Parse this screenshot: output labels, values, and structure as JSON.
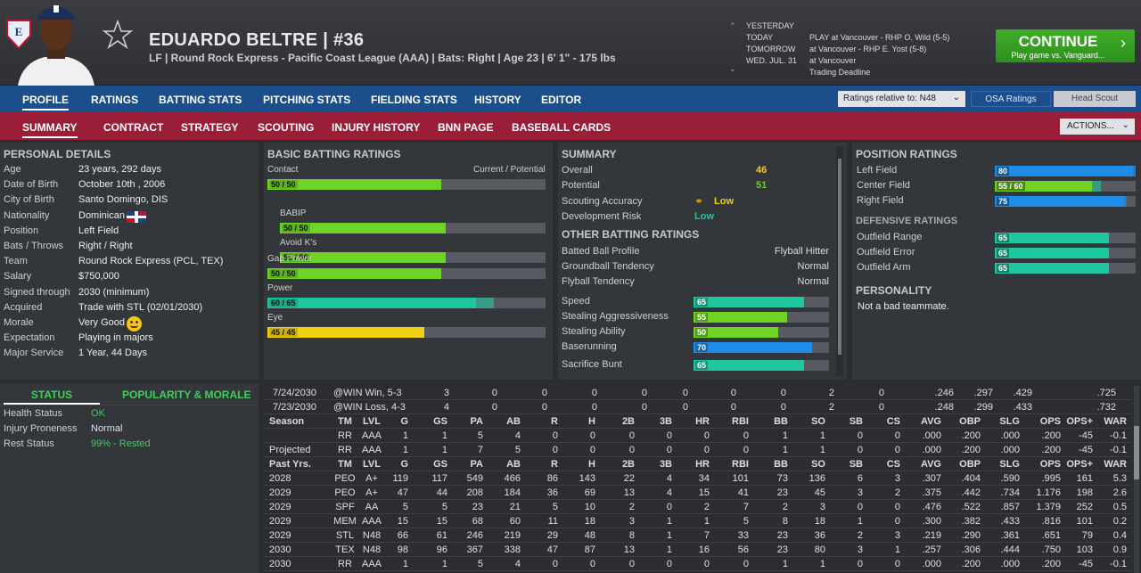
{
  "header": {
    "player_name": "EDUARDO BELTRE  |  #36",
    "player_line": "LF | Round Rock Express - Pacific Coast League (AAA)  |  Bats: Right  |  Age 23  |  6' 1\" - 175 lbs",
    "schedule": [
      {
        "day": "YESTERDAY",
        "event": ""
      },
      {
        "day": "TODAY",
        "event": "PLAY at Vancouver - RHP O. Wild (5-5)"
      },
      {
        "day": "TOMORROW",
        "event": "at Vancouver - RHP E. Yost (5-8)"
      },
      {
        "day": "WED. JUL. 31",
        "event": "at Vancouver"
      },
      {
        "day": "",
        "event": "Trading Deadline"
      }
    ],
    "continue_label": "CONTINUE",
    "continue_sub": "Play game vs. Vanguard..."
  },
  "nav_main": [
    "PROFILE",
    "RATINGS",
    "BATTING STATS",
    "PITCHING STATS",
    "FIELDING STATS",
    "HISTORY",
    "EDITOR"
  ],
  "ratings_relative": "Ratings relative to: N48",
  "osa_ratings": "OSA Ratings",
  "head_scout": "Head Scout",
  "nav_sub": [
    "SUMMARY",
    "CONTRACT",
    "STRATEGY",
    "SCOUTING",
    "INJURY HISTORY",
    "BNN PAGE",
    "BASEBALL CARDS"
  ],
  "actions_label": "ACTIONS...",
  "personal": {
    "title": "PERSONAL DETAILS",
    "rows": [
      {
        "k": "Age",
        "v": "23 years, 292 days"
      },
      {
        "k": "Date of Birth",
        "v": "October 10th , 2006"
      },
      {
        "k": "City of Birth",
        "v": "Santo Domingo, DIS"
      },
      {
        "k": "Nationality",
        "v": "Dominican"
      },
      {
        "k": "Position",
        "v": "Left Field"
      },
      {
        "k": "Bats / Throws",
        "v": "Right / Right"
      },
      {
        "k": "Team",
        "v": "Round Rock Express (PCL, TEX)"
      },
      {
        "k": "Salary",
        "v": "$750,000"
      },
      {
        "k": "Signed through",
        "v": "2030 (minimum)"
      },
      {
        "k": "Acquired",
        "v": "Trade with STL (02/01/2030)"
      },
      {
        "k": "Morale",
        "v": "Very Good"
      },
      {
        "k": "Expectation",
        "v": "Playing in majors"
      },
      {
        "k": "Major Service",
        "v": "1 Year, 44 Days"
      }
    ]
  },
  "batting": {
    "title": "BASIC BATTING RATINGS",
    "current_potential": "Current / Potential",
    "bars": [
      {
        "name": "Contact",
        "label": "50 / 50",
        "cur": 50,
        "pot": 50,
        "color": "green",
        "indent": false
      },
      {
        "name": "BABIP",
        "label": "50 / 50",
        "cur": 50,
        "pot": 50,
        "color": "green",
        "indent": true
      },
      {
        "name": "Avoid K's",
        "label": "50 / 50",
        "cur": 50,
        "pot": 50,
        "color": "green",
        "indent": true
      },
      {
        "name": "Gap Power",
        "label": "50 / 50",
        "cur": 50,
        "pot": 50,
        "color": "green",
        "indent": false
      },
      {
        "name": "Power",
        "label": "60 / 65",
        "cur": 60,
        "pot": 65,
        "color": "teal",
        "indent": false
      },
      {
        "name": "Eye",
        "label": "45 / 45",
        "cur": 45,
        "pot": 45,
        "color": "yellow",
        "indent": false
      }
    ]
  },
  "summary": {
    "title": "SUMMARY",
    "overall_k": "Overall",
    "overall_v": "46",
    "potential_k": "Potential",
    "potential_v": "51",
    "scouting_k": "Scouting Accuracy",
    "scouting_v": "Low",
    "dev_k": "Development Risk",
    "dev_v": "Low",
    "other_title": "OTHER BATTING RATINGS",
    "other": [
      {
        "k": "Batted Ball Profile",
        "v": "Flyball Hitter"
      },
      {
        "k": "Groundball Tendency",
        "v": "Normal"
      },
      {
        "k": "Flyball Tendency",
        "v": "Normal"
      }
    ],
    "speed_bars": [
      {
        "name": "Speed",
        "value": 65,
        "color": "teal"
      },
      {
        "name": "Stealing Aggressiveness",
        "value": 55,
        "color": "green"
      },
      {
        "name": "Stealing Ability",
        "value": 50,
        "color": "green"
      },
      {
        "name": "Baserunning",
        "value": 70,
        "color": "blue"
      },
      {
        "name": "Sacrifice Bunt",
        "value": 65,
        "color": "teal"
      }
    ]
  },
  "positions": {
    "title": "POSITION RATINGS",
    "bars": [
      {
        "name": "Left Field",
        "label": "80",
        "cur": 80,
        "pot": 80,
        "color": "blue"
      },
      {
        "name": "Center Field",
        "label": "55 / 60",
        "cur": 55,
        "pot": 60,
        "color": "green"
      },
      {
        "name": "Right Field",
        "label": "75",
        "cur": 75,
        "pot": 75,
        "color": "blue"
      }
    ],
    "def_title": "DEFENSIVE RATINGS",
    "def_bars": [
      {
        "name": "Outfield Range",
        "label": "65",
        "cur": 65,
        "color": "teal"
      },
      {
        "name": "Outfield Error",
        "label": "65",
        "cur": 65,
        "color": "teal"
      },
      {
        "name": "Outfield Arm",
        "label": "65",
        "cur": 65,
        "color": "teal"
      }
    ],
    "personality_title": "PERSONALITY",
    "personality": "Not a bad teammate."
  },
  "status": {
    "tab_status": "STATUS",
    "tab_popularity": "POPULARITY & MORALE",
    "rows": [
      {
        "k": "Health Status",
        "v": "OK",
        "color": "#3fd05a"
      },
      {
        "k": "Injury Proneness",
        "v": "Normal",
        "color": "#e0e0e0"
      },
      {
        "k": "Rest Status",
        "v": "99% - Rested",
        "color": "#3fd05a"
      }
    ]
  },
  "stats": {
    "game_rows": [
      [
        "7/24/2030",
        "@WIN  Win, 5-3",
        "3",
        "0",
        "0",
        "0",
        "0",
        "0",
        "0",
        "0",
        "2",
        "0",
        ".246",
        ".297",
        ".429",
        ".725"
      ],
      [
        "7/23/2030",
        "@WIN  Loss, 4-3",
        "4",
        "0",
        "0",
        "0",
        "0",
        "0",
        "0",
        "0",
        "2",
        "0",
        ".248",
        ".299",
        ".433",
        ".732"
      ]
    ],
    "season_header": [
      "Season",
      "TM",
      "LVL",
      "G",
      "GS",
      "PA",
      "AB",
      "R",
      "H",
      "2B",
      "3B",
      "HR",
      "RBI",
      "BB",
      "SO",
      "SB",
      "CS",
      "AVG",
      "OBP",
      "SLG",
      "OPS",
      "OPS+",
      "WAR"
    ],
    "season_rows": [
      [
        "",
        "RR",
        "AAA",
        "1",
        "1",
        "5",
        "4",
        "0",
        "0",
        "0",
        "0",
        "0",
        "0",
        "1",
        "1",
        "0",
        "0",
        ".000",
        ".200",
        ".000",
        ".200",
        "-45",
        "-0.1"
      ],
      [
        "Projected",
        "RR",
        "AAA",
        "1",
        "1",
        "7",
        "5",
        "0",
        "0",
        "0",
        "0",
        "0",
        "0",
        "1",
        "1",
        "0",
        "0",
        ".000",
        ".200",
        ".000",
        ".200",
        "-45",
        "-0.1"
      ]
    ],
    "past_header": [
      "Past Yrs.",
      "TM",
      "LVL",
      "G",
      "GS",
      "PA",
      "AB",
      "R",
      "H",
      "2B",
      "3B",
      "HR",
      "RBI",
      "BB",
      "SO",
      "SB",
      "CS",
      "AVG",
      "OBP",
      "SLG",
      "OPS",
      "OPS+",
      "WAR"
    ],
    "past_rows": [
      [
        "2028",
        "PEO",
        "A+",
        "119",
        "117",
        "549",
        "466",
        "86",
        "143",
        "22",
        "4",
        "34",
        "101",
        "73",
        "136",
        "6",
        "3",
        ".307",
        ".404",
        ".590",
        ".995",
        "161",
        "5.3"
      ],
      [
        "2029",
        "PEO",
        "A+",
        "47",
        "44",
        "208",
        "184",
        "36",
        "69",
        "13",
        "4",
        "15",
        "41",
        "23",
        "45",
        "3",
        "2",
        ".375",
        ".442",
        ".734",
        "1.176",
        "198",
        "2.6"
      ],
      [
        "2029",
        "SPF",
        "AA",
        "5",
        "5",
        "23",
        "21",
        "5",
        "10",
        "2",
        "0",
        "2",
        "7",
        "2",
        "3",
        "0",
        "0",
        ".476",
        ".522",
        ".857",
        "1.379",
        "252",
        "0.5"
      ],
      [
        "2029",
        "MEM",
        "AAA",
        "15",
        "15",
        "68",
        "60",
        "11",
        "18",
        "3",
        "1",
        "1",
        "5",
        "8",
        "18",
        "1",
        "0",
        ".300",
        ".382",
        ".433",
        ".816",
        "101",
        "0.2"
      ],
      [
        "2029",
        "STL",
        "N48",
        "66",
        "61",
        "246",
        "219",
        "29",
        "48",
        "8",
        "1",
        "7",
        "33",
        "23",
        "36",
        "2",
        "3",
        ".219",
        ".290",
        ".361",
        ".651",
        "79",
        "0.4"
      ],
      [
        "2030",
        "TEX",
        "N48",
        "98",
        "96",
        "367",
        "338",
        "47",
        "87",
        "13",
        "1",
        "16",
        "56",
        "23",
        "80",
        "3",
        "1",
        ".257",
        ".306",
        ".444",
        ".750",
        "103",
        "0.9"
      ],
      [
        "2030",
        "RR",
        "AAA",
        "1",
        "1",
        "5",
        "4",
        "0",
        "0",
        "0",
        "0",
        "0",
        "0",
        "1",
        "1",
        "0",
        "0",
        ".000",
        ".200",
        ".000",
        ".200",
        "-45",
        "-0.1"
      ]
    ]
  }
}
